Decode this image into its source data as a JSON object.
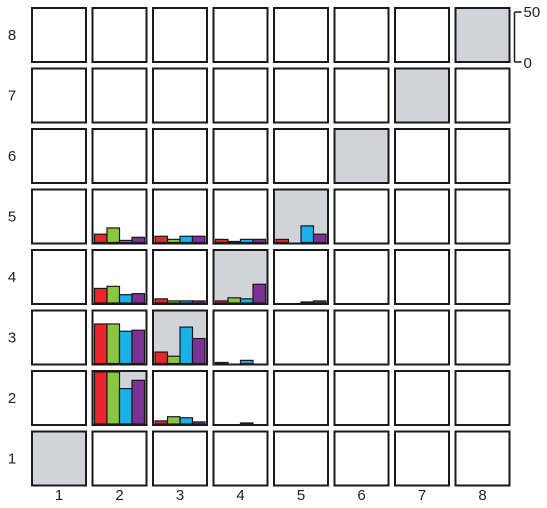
{
  "chart_data": {
    "type": "bar",
    "layout": "8x8 grid of small-multiple bar charts (lower triangle filled, diagonal shaded)",
    "grid_size": 8,
    "x_tick_labels": [
      "1",
      "2",
      "3",
      "4",
      "5",
      "6",
      "7",
      "8"
    ],
    "y_tick_labels": [
      "1",
      "2",
      "3",
      "4",
      "5",
      "6",
      "7",
      "8"
    ],
    "scale": {
      "ylim": [
        0,
        50
      ],
      "tick_labels": [
        "0",
        "50"
      ],
      "position": "top-right"
    },
    "series_colors": [
      "#e8262b",
      "#8cc63f",
      "#1bb0e8",
      "#7b3294"
    ],
    "diagonal_color": "#d2d3d8",
    "cells": [
      {
        "col": 2,
        "row": 5,
        "values": [
          8,
          14,
          2,
          5
        ]
      },
      {
        "col": 3,
        "row": 5,
        "values": [
          6,
          3,
          6,
          6
        ]
      },
      {
        "col": 4,
        "row": 5,
        "values": [
          3,
          1,
          3,
          3
        ]
      },
      {
        "col": 5,
        "row": 5,
        "values": [
          3,
          0,
          16,
          8
        ]
      },
      {
        "col": 2,
        "row": 4,
        "values": [
          14,
          16,
          8,
          9
        ]
      },
      {
        "col": 3,
        "row": 4,
        "values": [
          4,
          2,
          2,
          2
        ]
      },
      {
        "col": 4,
        "row": 4,
        "values": [
          2,
          5,
          4,
          18
        ]
      },
      {
        "col": 5,
        "row": 4,
        "values": [
          0,
          0,
          1,
          2
        ]
      },
      {
        "col": 2,
        "row": 3,
        "values": [
          38,
          38,
          31,
          32
        ]
      },
      {
        "col": 3,
        "row": 3,
        "values": [
          11,
          7,
          35,
          24
        ]
      },
      {
        "col": 4,
        "row": 3,
        "values": [
          1,
          0,
          3,
          0
        ]
      },
      {
        "col": 2,
        "row": 2,
        "values": [
          50,
          50,
          34,
          42
        ]
      },
      {
        "col": 3,
        "row": 2,
        "values": [
          3,
          7,
          6,
          2
        ]
      },
      {
        "col": 4,
        "row": 2,
        "values": [
          0,
          0,
          1,
          0
        ]
      }
    ]
  }
}
